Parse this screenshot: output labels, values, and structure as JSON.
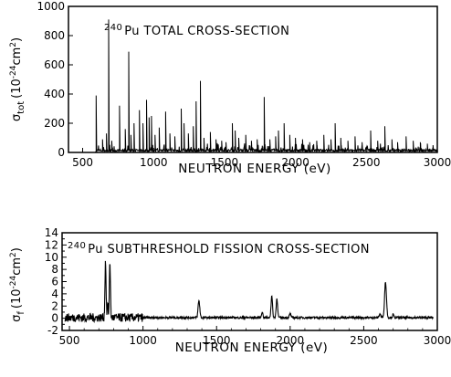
{
  "chart_data": [
    {
      "type": "line",
      "title_sup": "240",
      "title": "Pu TOTAL CROSS-SECTION",
      "xlabel": "NEUTRON ENERGY (eV)",
      "ylabel_main": "σ",
      "ylabel_sub": "tot",
      "ylabel_unit": "(10",
      "ylabel_exp1": "-24",
      "ylabel_unit2": "cm",
      "ylabel_exp2": "2",
      "ylabel_close": ")",
      "xlim": [
        400,
        3000
      ],
      "ylim": [
        0,
        1000
      ],
      "x_ticks": [
        500,
        1000,
        1500,
        2000,
        2500,
        3000
      ],
      "y_ticks": [
        0,
        200,
        400,
        600,
        800,
        1000
      ],
      "baseline": 12,
      "peaks": [
        {
          "x": 595,
          "y": 390
        },
        {
          "x": 640,
          "y": 90
        },
        {
          "x": 668,
          "y": 130
        },
        {
          "x": 683,
          "y": 910
        },
        {
          "x": 705,
          "y": 80
        },
        {
          "x": 760,
          "y": 320
        },
        {
          "x": 800,
          "y": 160
        },
        {
          "x": 825,
          "y": 690
        },
        {
          "x": 840,
          "y": 120
        },
        {
          "x": 862,
          "y": 200
        },
        {
          "x": 900,
          "y": 290
        },
        {
          "x": 925,
          "y": 200
        },
        {
          "x": 950,
          "y": 360
        },
        {
          "x": 968,
          "y": 240
        },
        {
          "x": 985,
          "y": 250
        },
        {
          "x": 1010,
          "y": 120
        },
        {
          "x": 1040,
          "y": 170
        },
        {
          "x": 1085,
          "y": 280
        },
        {
          "x": 1115,
          "y": 130
        },
        {
          "x": 1150,
          "y": 110
        },
        {
          "x": 1195,
          "y": 300
        },
        {
          "x": 1215,
          "y": 200
        },
        {
          "x": 1245,
          "y": 130
        },
        {
          "x": 1280,
          "y": 180
        },
        {
          "x": 1300,
          "y": 350
        },
        {
          "x": 1330,
          "y": 490
        },
        {
          "x": 1355,
          "y": 100
        },
        {
          "x": 1400,
          "y": 140
        },
        {
          "x": 1440,
          "y": 90
        },
        {
          "x": 1480,
          "y": 80
        },
        {
          "x": 1510,
          "y": 70
        },
        {
          "x": 1555,
          "y": 200
        },
        {
          "x": 1575,
          "y": 150
        },
        {
          "x": 1600,
          "y": 100
        },
        {
          "x": 1650,
          "y": 120
        },
        {
          "x": 1690,
          "y": 80
        },
        {
          "x": 1730,
          "y": 90
        },
        {
          "x": 1780,
          "y": 380
        },
        {
          "x": 1820,
          "y": 90
        },
        {
          "x": 1860,
          "y": 110
        },
        {
          "x": 1880,
          "y": 150
        },
        {
          "x": 1920,
          "y": 200
        },
        {
          "x": 1960,
          "y": 120
        },
        {
          "x": 2000,
          "y": 100
        },
        {
          "x": 2050,
          "y": 90
        },
        {
          "x": 2100,
          "y": 70
        },
        {
          "x": 2150,
          "y": 80
        },
        {
          "x": 2200,
          "y": 120
        },
        {
          "x": 2250,
          "y": 90
        },
        {
          "x": 2280,
          "y": 200
        },
        {
          "x": 2320,
          "y": 100
        },
        {
          "x": 2370,
          "y": 80
        },
        {
          "x": 2420,
          "y": 110
        },
        {
          "x": 2470,
          "y": 70
        },
        {
          "x": 2530,
          "y": 150
        },
        {
          "x": 2580,
          "y": 80
        },
        {
          "x": 2630,
          "y": 180
        },
        {
          "x": 2680,
          "y": 90
        },
        {
          "x": 2720,
          "y": 70
        },
        {
          "x": 2780,
          "y": 110
        },
        {
          "x": 2830,
          "y": 80
        },
        {
          "x": 2880,
          "y": 70
        },
        {
          "x": 2930,
          "y": 60
        },
        {
          "x": 2970,
          "y": 50
        }
      ]
    },
    {
      "type": "line",
      "title_sup": "240",
      "title": "Pu SUBTHRESHOLD FISSION CROSS-SECTION",
      "xlabel": "NEUTRON ENERGY (eV)",
      "ylabel_main": "σ",
      "ylabel_sub": "f",
      "ylabel_unit": "(10",
      "ylabel_exp1": "-24",
      "ylabel_unit2": "cm",
      "ylabel_exp2": "2",
      "ylabel_close": ")",
      "xlim": [
        450,
        3000
      ],
      "ylim": [
        -2,
        14
      ],
      "x_ticks": [
        500,
        1000,
        1500,
        2000,
        2500,
        3000
      ],
      "y_ticks": [
        -2,
        0,
        2,
        4,
        6,
        8,
        10,
        12,
        14
      ],
      "baseline": 0.1,
      "noise_below_x": 1000,
      "peaks": [
        {
          "x": 745,
          "y": 9.5,
          "w": 5
        },
        {
          "x": 760,
          "y": 2.0,
          "w": 5
        },
        {
          "x": 775,
          "y": 9.4,
          "w": 5
        },
        {
          "x": 1380,
          "y": 2.8,
          "w": 8
        },
        {
          "x": 1810,
          "y": 1.0,
          "w": 6
        },
        {
          "x": 1875,
          "y": 3.5,
          "w": 7
        },
        {
          "x": 1910,
          "y": 3.1,
          "w": 7
        },
        {
          "x": 2000,
          "y": 0.6,
          "w": 8
        },
        {
          "x": 2610,
          "y": 0.6,
          "w": 8
        },
        {
          "x": 2648,
          "y": 5.8,
          "w": 9
        },
        {
          "x": 2700,
          "y": 0.5,
          "w": 6
        }
      ]
    }
  ]
}
